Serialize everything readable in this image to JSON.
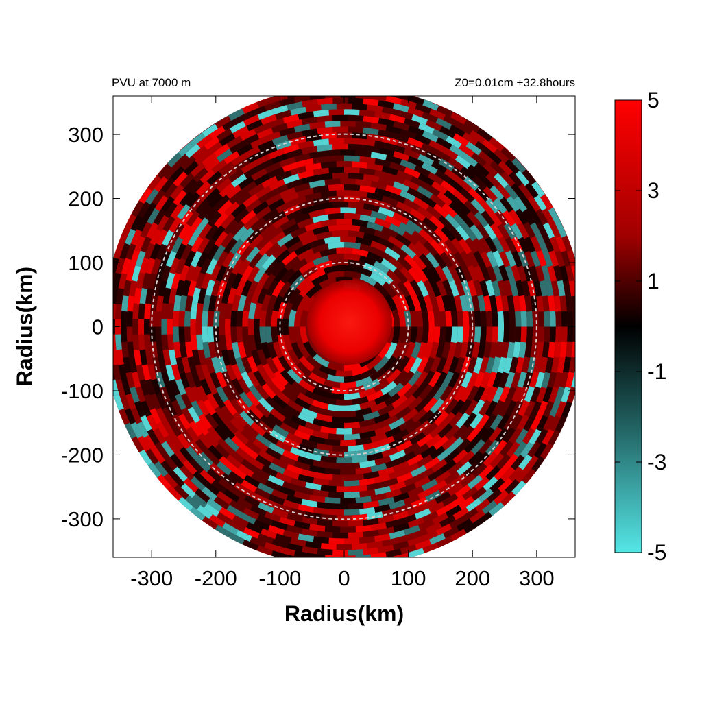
{
  "chart_data": {
    "type": "heatmap",
    "title_left": "PVU at  7000 m",
    "title_right": "Z0=0.01cm  +32.8hours",
    "xlabel": "Radius(km)",
    "ylabel": "Radius(km)",
    "xlim": [
      -360,
      360
    ],
    "ylim": [
      -360,
      360
    ],
    "x_ticks": [
      "-300",
      "-200",
      "-100",
      "0",
      "100",
      "200",
      "300"
    ],
    "x_tick_values": [
      -300,
      -200,
      -100,
      0,
      100,
      200,
      300
    ],
    "y_ticks": [
      "300",
      "200",
      "100",
      "0",
      "-100",
      "-200",
      "-300"
    ],
    "y_tick_values": [
      300,
      200,
      100,
      0,
      -100,
      -200,
      -300
    ],
    "domain_radius": 375,
    "range_rings": [
      100,
      200,
      300
    ],
    "colorbar": {
      "min": -5,
      "max": 5,
      "tick_labels": [
        "5",
        "3",
        "1",
        "-1",
        "-3",
        "-5"
      ],
      "tick_values": [
        5,
        3,
        1,
        -1,
        -3,
        -5
      ],
      "colors": [
        "#ff0000",
        "#000000",
        "#55e6e6"
      ]
    }
  }
}
